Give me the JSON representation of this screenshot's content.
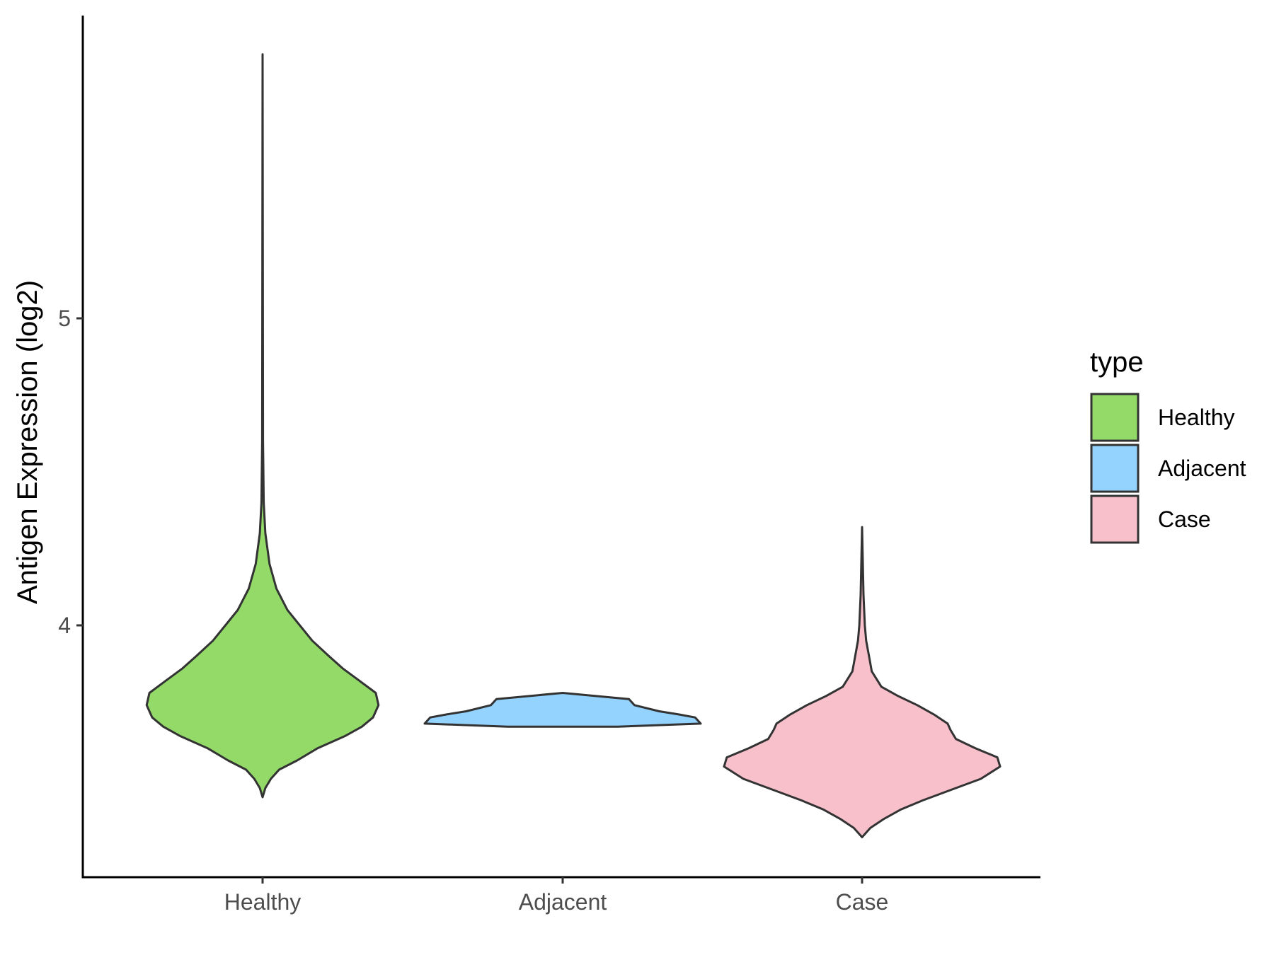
{
  "chart_data": {
    "type": "violin",
    "ylabel": "Antigen Expression (log2)",
    "xlabel": "",
    "categories": [
      "Healthy",
      "Adjacent",
      "Case"
    ],
    "y_ticks": [
      4,
      5
    ],
    "y_tick_labels": [
      "4",
      "5"
    ],
    "ylim": [
      3.2,
      5.98
    ],
    "grid": false,
    "legend": {
      "title": "type",
      "position": "right",
      "entries": [
        "Healthy",
        "Adjacent",
        "Case"
      ]
    },
    "colors": {
      "Healthy": "#93DA69",
      "Adjacent": "#94D3FE",
      "Case": "#F7C0CB",
      "outline": "#333333"
    },
    "series": [
      {
        "name": "Healthy",
        "min": 3.44,
        "max": 5.86,
        "profile": [
          [
            3.44,
            0.0
          ],
          [
            3.47,
            0.02
          ],
          [
            3.5,
            0.06
          ],
          [
            3.53,
            0.12
          ],
          [
            3.56,
            0.25
          ],
          [
            3.6,
            0.4
          ],
          [
            3.64,
            0.6
          ],
          [
            3.67,
            0.72
          ],
          [
            3.7,
            0.8
          ],
          [
            3.74,
            0.84
          ],
          [
            3.78,
            0.82
          ],
          [
            3.82,
            0.7
          ],
          [
            3.86,
            0.58
          ],
          [
            3.9,
            0.48
          ],
          [
            3.95,
            0.36
          ],
          [
            4.0,
            0.27
          ],
          [
            4.05,
            0.18
          ],
          [
            4.12,
            0.1
          ],
          [
            4.2,
            0.05
          ],
          [
            4.3,
            0.02
          ],
          [
            4.4,
            0.008
          ],
          [
            4.6,
            0.003
          ],
          [
            5.86,
            0.0
          ]
        ]
      },
      {
        "name": "Adjacent",
        "min": 3.67,
        "max": 3.78,
        "profile": [
          [
            3.67,
            0.4
          ],
          [
            3.68,
            1.0
          ],
          [
            3.7,
            0.96
          ],
          [
            3.71,
            0.84
          ],
          [
            3.72,
            0.7
          ],
          [
            3.74,
            0.52
          ],
          [
            3.76,
            0.48
          ],
          [
            3.78,
            0.0
          ]
        ]
      },
      {
        "name": "Case",
        "min": 3.31,
        "max": 4.32,
        "profile": [
          [
            3.31,
            0.0
          ],
          [
            3.34,
            0.06
          ],
          [
            3.37,
            0.16
          ],
          [
            3.4,
            0.28
          ],
          [
            3.43,
            0.44
          ],
          [
            3.47,
            0.68
          ],
          [
            3.5,
            0.86
          ],
          [
            3.54,
            1.0
          ],
          [
            3.57,
            0.98
          ],
          [
            3.6,
            0.82
          ],
          [
            3.63,
            0.68
          ],
          [
            3.66,
            0.64
          ],
          [
            3.68,
            0.62
          ],
          [
            3.71,
            0.52
          ],
          [
            3.74,
            0.4
          ],
          [
            3.77,
            0.26
          ],
          [
            3.8,
            0.14
          ],
          [
            3.85,
            0.07
          ],
          [
            3.9,
            0.05
          ],
          [
            3.95,
            0.03
          ],
          [
            4.0,
            0.02
          ],
          [
            4.1,
            0.01
          ],
          [
            4.32,
            0.0
          ]
        ]
      }
    ]
  }
}
